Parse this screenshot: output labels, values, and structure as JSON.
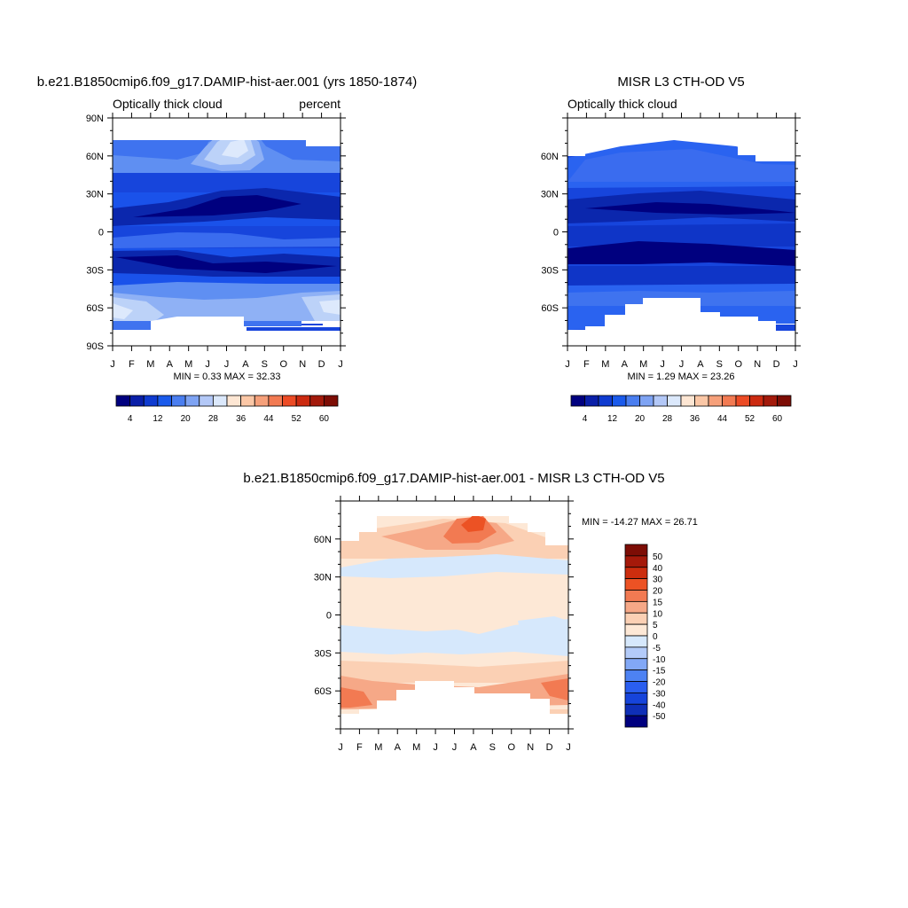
{
  "months": [
    "J",
    "F",
    "M",
    "A",
    "M",
    "J",
    "J",
    "A",
    "S",
    "O",
    "N",
    "D",
    "J"
  ],
  "panels": [
    {
      "title": "b.e21.B1850cmip6.f09_g17.DAMIP-hist-aer.001 (yrs 1850-1874)",
      "left_label": "Optically thick cloud",
      "right_label": "percent",
      "min_max_text": "MIN =   0.33 MAX =  32.33",
      "lat_ticks": [
        "90N",
        "60N",
        "30N",
        "0",
        "30S",
        "60S",
        "90S"
      ],
      "colorbar_labels": [
        "4",
        "12",
        "20",
        "28",
        "36",
        "44",
        "52",
        "60"
      ]
    },
    {
      "title": "MISR L3 CTH-OD V5",
      "left_label": "Optically thick cloud",
      "right_label": "",
      "min_max_text": "MIN =   1.29 MAX =  23.26",
      "lat_ticks": [
        "60N",
        "30N",
        "0",
        "30S",
        "60S"
      ],
      "colorbar_labels": [
        "4",
        "12",
        "20",
        "28",
        "36",
        "44",
        "52",
        "60"
      ]
    },
    {
      "title": "b.e21.B1850cmip6.f09_g17.DAMIP-hist-aer.001 - MISR L3 CTH-OD V5",
      "min_max_text": "MIN = -14.27 MAX =  26.71",
      "lat_ticks": [
        "60N",
        "30N",
        "0",
        "30S",
        "60S"
      ],
      "colorbar_labels": [
        "50",
        "40",
        "30",
        "20",
        "15",
        "10",
        "5",
        "0",
        "-5",
        "-10",
        "-15",
        "-20",
        "-30",
        "-40",
        "-50"
      ]
    }
  ],
  "chart_data": [
    {
      "type": "heatmap",
      "title": "b.e21.B1850cmip6.f09_g17.DAMIP-hist-aer.001 (yrs 1850-1874)",
      "subtitle_left": "Optically thick cloud",
      "subtitle_right": "percent",
      "x": [
        "J",
        "F",
        "M",
        "A",
        "M",
        "J",
        "J",
        "A",
        "S",
        "O",
        "N",
        "D",
        "J"
      ],
      "ylim": [
        -90,
        90
      ],
      "min": 0.33,
      "max": 32.33,
      "levels": [
        4,
        8,
        12,
        16,
        20,
        24,
        28,
        32,
        36,
        40,
        44,
        48,
        52,
        56,
        60
      ],
      "colors": [
        "#00007f",
        "#0a1fa8",
        "#0f3bd0",
        "#1a5aeb",
        "#4a7ef0",
        "#7ea3f3",
        "#b3c8f7",
        "#dbe8fb",
        "#fde6d3",
        "#fbc7a6",
        "#f6a07a",
        "#f27a52",
        "#ec4b25",
        "#cc2a10",
        "#a31a0b",
        "#7d0d05"
      ]
    },
    {
      "type": "heatmap",
      "title": "MISR L3 CTH-OD V5",
      "subtitle_left": "Optically thick cloud",
      "x": [
        "J",
        "F",
        "M",
        "A",
        "M",
        "J",
        "J",
        "A",
        "S",
        "O",
        "N",
        "D",
        "J"
      ],
      "ylim": [
        -90,
        90
      ],
      "min": 1.29,
      "max": 23.26,
      "levels": [
        4,
        8,
        12,
        16,
        20,
        24,
        28,
        32,
        36,
        40,
        44,
        48,
        52,
        56,
        60
      ]
    },
    {
      "type": "heatmap",
      "title": "b.e21.B1850cmip6.f09_g17.DAMIP-hist-aer.001 - MISR L3 CTH-OD V5",
      "x": [
        "J",
        "F",
        "M",
        "A",
        "M",
        "J",
        "J",
        "A",
        "S",
        "O",
        "N",
        "D",
        "J"
      ],
      "ylim": [
        -90,
        90
      ],
      "min": -14.27,
      "max": 26.71,
      "levels": [
        -50,
        -40,
        -30,
        -20,
        -15,
        -10,
        -5,
        0,
        5,
        10,
        15,
        20,
        30,
        40,
        50
      ],
      "colors": [
        "#00007f",
        "#0f2fb8",
        "#1644db",
        "#2a5ef0",
        "#4d82f3",
        "#82a8f6",
        "#b3cbf9",
        "#d6e8fc",
        "#fde8d6",
        "#fbd0b4",
        "#f6a887",
        "#f27a52",
        "#ec5224",
        "#cc2d0e",
        "#a5190a",
        "#7d0d05"
      ]
    }
  ]
}
